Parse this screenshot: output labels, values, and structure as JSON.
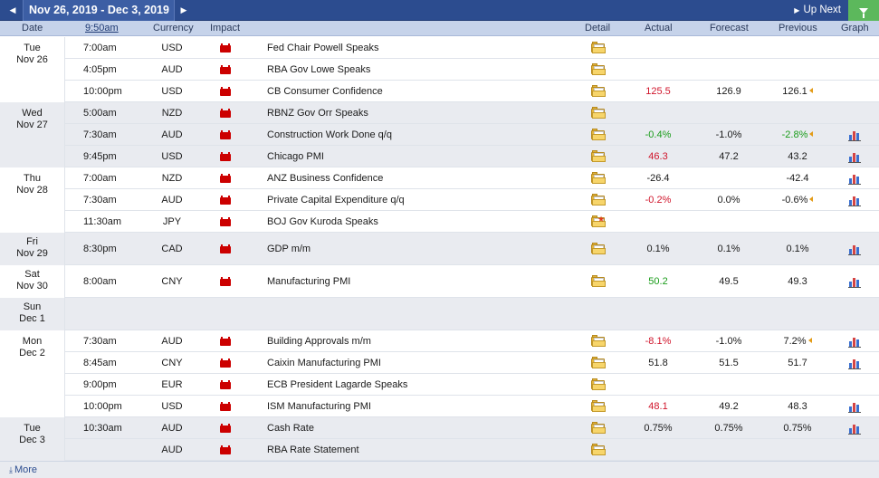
{
  "toolbar": {
    "date_range": "Nov 26, 2019 - Dec 3, 2019",
    "prev_icon": "triangle-left-icon",
    "next_icon": "triangle-right-icon",
    "up_next_label": "Up Next",
    "filter_icon": "filter-icon"
  },
  "columns": {
    "date": "Date",
    "time": "9:50am",
    "currency": "Currency",
    "impact": "Impact",
    "detail": "Detail",
    "actual": "Actual",
    "forecast": "Forecast",
    "previous": "Previous",
    "graph": "Graph"
  },
  "colors": {
    "header_bar": "#2c4c8f",
    "column_header": "#c6d3ea",
    "better_than_expected": "#1a9c1a",
    "worse_than_expected": "#d0152b",
    "impact_high": "#cc0000",
    "filter_active": "#5cb85c"
  },
  "days": [
    {
      "weekday": "Tue",
      "date": "Nov 26",
      "shade": false,
      "events": [
        {
          "time": "7:00am",
          "currency": "USD",
          "impact": "high",
          "event": "Fed Chair Powell Speaks",
          "detail_icon": "folder-icon",
          "actual": "",
          "actual_color": "black",
          "forecast": "",
          "previous": "",
          "revised": false,
          "graph": false
        },
        {
          "time": "4:05pm",
          "currency": "AUD",
          "impact": "high",
          "event": "RBA Gov Lowe Speaks",
          "detail_icon": "folder-icon",
          "actual": "",
          "actual_color": "black",
          "forecast": "",
          "previous": "",
          "revised": false,
          "graph": false
        },
        {
          "time": "10:00pm",
          "currency": "USD",
          "impact": "high",
          "event": "CB Consumer Confidence",
          "detail_icon": "folder-icon",
          "actual": "125.5",
          "actual_color": "red",
          "forecast": "126.9",
          "previous": "126.1",
          "revised": true,
          "graph": false
        }
      ]
    },
    {
      "weekday": "Wed",
      "date": "Nov 27",
      "shade": true,
      "events": [
        {
          "time": "5:00am",
          "currency": "NZD",
          "impact": "high",
          "event": "RBNZ Gov Orr Speaks",
          "detail_icon": "folder-icon",
          "actual": "",
          "actual_color": "black",
          "forecast": "",
          "previous": "",
          "revised": false,
          "graph": false
        },
        {
          "time": "7:30am",
          "currency": "AUD",
          "impact": "high",
          "event": "Construction Work Done q/q",
          "detail_icon": "folder-icon",
          "actual": "-0.4%",
          "actual_color": "green",
          "forecast": "-1.0%",
          "previous": "-2.8%",
          "previous_color": "green",
          "revised": true,
          "graph": true
        },
        {
          "time": "9:45pm",
          "currency": "USD",
          "impact": "high",
          "event": "Chicago PMI",
          "detail_icon": "folder-icon",
          "actual": "46.3",
          "actual_color": "red",
          "forecast": "47.2",
          "previous": "43.2",
          "revised": false,
          "graph": true
        }
      ]
    },
    {
      "weekday": "Thu",
      "date": "Nov 28",
      "shade": false,
      "events": [
        {
          "time": "7:00am",
          "currency": "NZD",
          "impact": "high",
          "event": "ANZ Business Confidence",
          "detail_icon": "folder-icon",
          "actual": "-26.4",
          "actual_color": "black",
          "forecast": "",
          "previous": "-42.4",
          "revised": false,
          "graph": true
        },
        {
          "time": "7:30am",
          "currency": "AUD",
          "impact": "high",
          "event": "Private Capital Expenditure q/q",
          "detail_icon": "folder-icon",
          "actual": "-0.2%",
          "actual_color": "red",
          "forecast": "0.0%",
          "previous": "-0.6%",
          "revised": true,
          "graph": true
        },
        {
          "time": "11:30am",
          "currency": "JPY",
          "impact": "high",
          "event": "BOJ Gov Kuroda Speaks",
          "detail_icon": "folder-new-icon",
          "actual": "",
          "actual_color": "black",
          "forecast": "",
          "previous": "",
          "revised": false,
          "graph": false
        }
      ]
    },
    {
      "weekday": "Fri",
      "date": "Nov 29",
      "shade": true,
      "events": [
        {
          "time": "8:30pm",
          "currency": "CAD",
          "impact": "high",
          "event": "GDP m/m",
          "detail_icon": "folder-icon",
          "actual": "0.1%",
          "actual_color": "black",
          "forecast": "0.1%",
          "previous": "0.1%",
          "revised": false,
          "graph": true
        }
      ]
    },
    {
      "weekday": "Sat",
      "date": "Nov 30",
      "shade": false,
      "events": [
        {
          "time": "8:00am",
          "currency": "CNY",
          "impact": "high",
          "event": "Manufacturing PMI",
          "detail_icon": "folder-icon",
          "actual": "50.2",
          "actual_color": "green",
          "forecast": "49.5",
          "previous": "49.3",
          "revised": false,
          "graph": true
        }
      ]
    },
    {
      "weekday": "Sun",
      "date": "Dec 1",
      "shade": true,
      "events": []
    },
    {
      "weekday": "Mon",
      "date": "Dec 2",
      "shade": false,
      "events": [
        {
          "time": "7:30am",
          "currency": "AUD",
          "impact": "high",
          "event": "Building Approvals m/m",
          "detail_icon": "folder-icon",
          "actual": "-8.1%",
          "actual_color": "red",
          "forecast": "-1.0%",
          "previous": "7.2%",
          "revised": true,
          "graph": true
        },
        {
          "time": "8:45am",
          "currency": "CNY",
          "impact": "high",
          "event": "Caixin Manufacturing PMI",
          "detail_icon": "folder-icon",
          "actual": "51.8",
          "actual_color": "black",
          "forecast": "51.5",
          "previous": "51.7",
          "revised": false,
          "graph": true
        },
        {
          "time": "9:00pm",
          "currency": "EUR",
          "impact": "high",
          "event": "ECB President Lagarde Speaks",
          "detail_icon": "folder-icon",
          "actual": "",
          "actual_color": "black",
          "forecast": "",
          "previous": "",
          "revised": false,
          "graph": false
        },
        {
          "time": "10:00pm",
          "currency": "USD",
          "impact": "high",
          "event": "ISM Manufacturing PMI",
          "detail_icon": "folder-icon",
          "actual": "48.1",
          "actual_color": "red",
          "forecast": "49.2",
          "previous": "48.3",
          "revised": false,
          "graph": true
        }
      ]
    },
    {
      "weekday": "Tue",
      "date": "Dec 3",
      "shade": true,
      "events": [
        {
          "time": "10:30am",
          "currency": "AUD",
          "impact": "high",
          "event": "Cash Rate",
          "detail_icon": "folder-icon",
          "actual": "0.75%",
          "actual_color": "black",
          "forecast": "0.75%",
          "previous": "0.75%",
          "revised": false,
          "graph": true
        },
        {
          "time": "",
          "currency": "AUD",
          "impact": "high",
          "event": "RBA Rate Statement",
          "detail_icon": "folder-icon",
          "actual": "",
          "actual_color": "black",
          "forecast": "",
          "previous": "",
          "revised": false,
          "graph": false
        }
      ]
    }
  ],
  "footer": {
    "more_label": "More",
    "more_icon": "download-arrow-icon"
  }
}
